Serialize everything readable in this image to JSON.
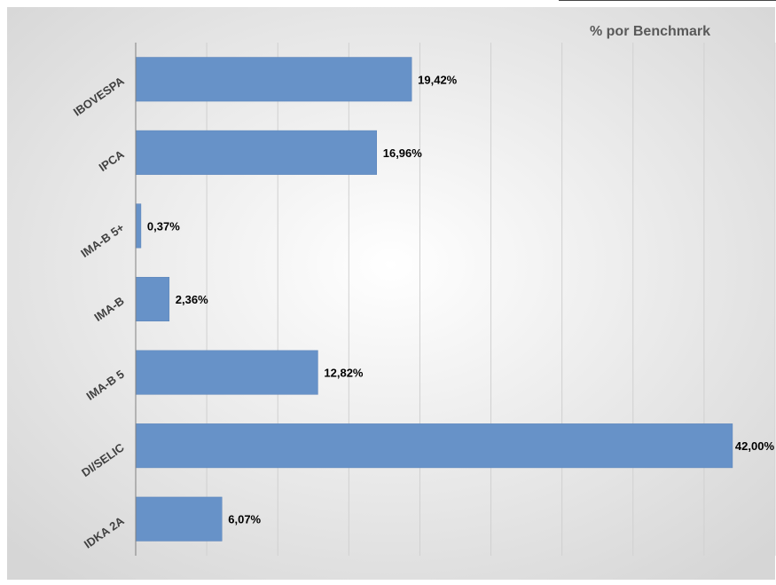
{
  "chart_data": {
    "type": "bar",
    "orientation": "horizontal",
    "title": "% por Benchmark",
    "categories": [
      "IBOVESPA",
      "IPCA",
      "IMA-B 5+",
      "IMA-B",
      "IMA-B 5",
      "DI/SELIC",
      "IDKA 2A"
    ],
    "values": [
      19.42,
      16.96,
      0.37,
      2.36,
      12.82,
      42.0,
      6.07
    ],
    "data_labels": [
      "19,42%",
      "16,96%",
      "0,37%",
      "2,36%",
      "12,82%",
      "42,00%",
      "6,07%"
    ],
    "xlim": [
      0,
      45
    ],
    "grid": true,
    "legend": "none",
    "colors": {
      "bar": "#6792c8",
      "bar_edge": "#5b83b8",
      "grid": "#d0d0d0",
      "axis": "#808080",
      "background": "#f2f2f2"
    }
  }
}
